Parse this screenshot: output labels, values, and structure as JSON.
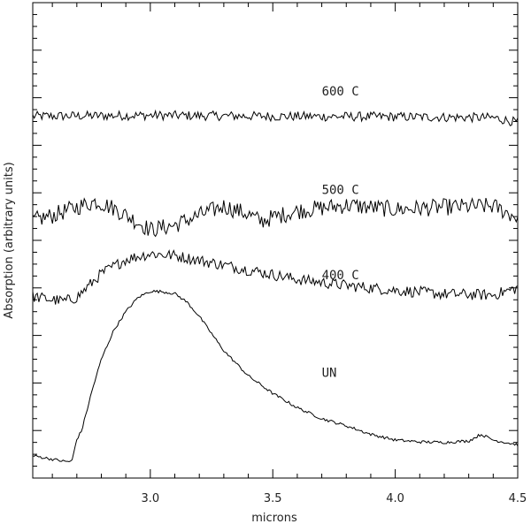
{
  "chart_data": {
    "type": "line",
    "title": "",
    "xlabel": "microns",
    "ylabel": "Absorption (arbitrary units)",
    "xlim": [
      2.52,
      4.5
    ],
    "ylim": [
      0,
      1
    ],
    "y_tick_labels": false,
    "grid": false,
    "legend": "none (series labeled inline above each curve)",
    "x_ticks": [
      {
        "value": 3.0,
        "label": "3.0"
      },
      {
        "value": 3.5,
        "label": "3.5"
      },
      {
        "value": 4.0,
        "label": "4.0"
      },
      {
        "value": 4.5,
        "label": "4.5"
      }
    ],
    "series": [
      {
        "name": "600 C",
        "color": "#000000",
        "noise": 0.01,
        "x": [
          2.52,
          3.0,
          3.5,
          4.0,
          4.2,
          4.4,
          4.5
        ],
        "y": [
          0.761,
          0.763,
          0.761,
          0.76,
          0.759,
          0.758,
          0.748
        ],
        "label_at": [
          3.7,
          0.805
        ]
      },
      {
        "name": "500 C",
        "color": "#000000",
        "noise": 0.018,
        "x": [
          2.52,
          2.6,
          2.7,
          2.78,
          2.85,
          2.95,
          3.0,
          3.1,
          3.2,
          3.3,
          3.4,
          3.45,
          3.5,
          3.6,
          3.7,
          3.8,
          4.0,
          4.2,
          4.4,
          4.5
        ],
        "y": [
          0.542,
          0.552,
          0.57,
          0.582,
          0.568,
          0.538,
          0.522,
          0.532,
          0.553,
          0.572,
          0.555,
          0.54,
          0.548,
          0.562,
          0.568,
          0.574,
          0.565,
          0.57,
          0.572,
          0.548
        ],
        "label_at": [
          3.7,
          0.598
        ]
      },
      {
        "name": "400 C",
        "color": "#000000",
        "noise": 0.012,
        "x": [
          2.52,
          2.6,
          2.65,
          2.7,
          2.8,
          2.9,
          3.0,
          3.1,
          3.2,
          3.4,
          3.6,
          3.8,
          4.0,
          4.2,
          4.4,
          4.5
        ],
        "y": [
          0.382,
          0.375,
          0.372,
          0.38,
          0.43,
          0.46,
          0.472,
          0.468,
          0.458,
          0.438,
          0.418,
          0.405,
          0.395,
          0.387,
          0.385,
          0.4
        ],
        "label_at": [
          3.7,
          0.418
        ]
      },
      {
        "name": "UN",
        "color": "#000000",
        "noise": 0.003,
        "x": [
          2.52,
          2.65,
          2.68,
          2.7,
          2.72,
          2.76,
          2.8,
          2.85,
          2.9,
          2.95,
          3.0,
          3.05,
          3.1,
          3.15,
          3.2,
          3.3,
          3.4,
          3.5,
          3.6,
          3.7,
          3.8,
          3.9,
          4.0,
          4.1,
          4.2,
          4.3,
          4.35,
          4.4,
          4.5
        ],
        "y": [
          0.047,
          0.035,
          0.035,
          0.082,
          0.1,
          0.18,
          0.25,
          0.31,
          0.35,
          0.38,
          0.393,
          0.392,
          0.388,
          0.37,
          0.34,
          0.268,
          0.215,
          0.178,
          0.148,
          0.125,
          0.11,
          0.092,
          0.08,
          0.076,
          0.075,
          0.078,
          0.092,
          0.08,
          0.07
        ],
        "label_at": [
          3.7,
          0.213
        ]
      }
    ]
  }
}
